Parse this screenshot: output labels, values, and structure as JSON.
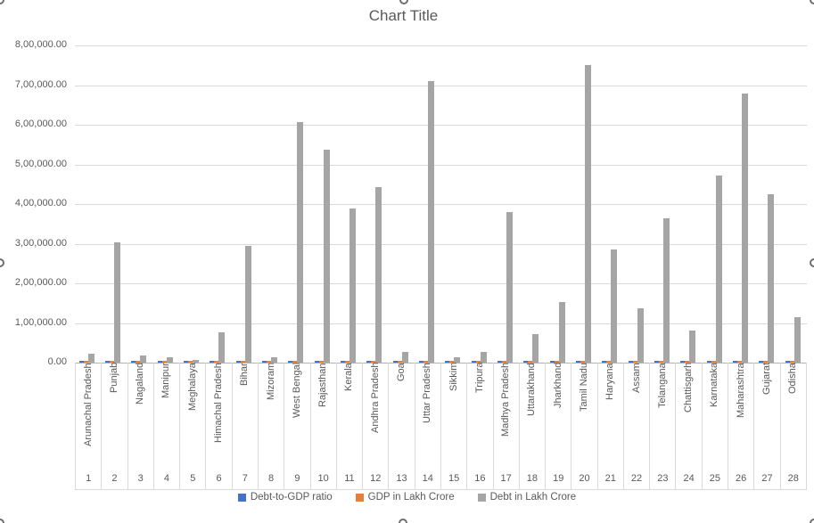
{
  "chart": {
    "background": "#FFFFFF",
    "selected": true,
    "selection_handles": [
      "top-left",
      "top-center",
      "top-right",
      "mid-left",
      "mid-right",
      "bottom-left",
      "bottom-center",
      "bottom-right"
    ]
  },
  "colors": {
    "series_blue": "#4472C4",
    "series_orange": "#ED7D31",
    "series_gray": "#A5A5A5",
    "gridline": "#D9D9D9",
    "axis_line": "#B3B3B3",
    "text": "#595959"
  },
  "chart_data": {
    "type": "bar",
    "title": "Chart Title",
    "grid": true,
    "legend_position": "bottom",
    "categories": [
      "Arunachal Pradesh",
      "Punjab",
      "Nagaland",
      "Manipur",
      "Meghalaya",
      "Himachal Pradesh",
      "Bihar",
      "Mizoram",
      "West Bengal",
      "Rajasthan",
      "Kerala",
      "Andhra Pradesh",
      "Goa",
      "Uttar Pradesh",
      "Sikkim",
      "Tripura",
      "Madhya Pradesh",
      "Uttarakhand",
      "Jharkhand",
      "Tamil Nadu",
      "Haryana",
      "Assam",
      "Telangana",
      "Chattisgarh",
      "Karnataka",
      "Maharashtra",
      "Gujarat",
      "Odisha"
    ],
    "category_numbers": [
      "1",
      "2",
      "3",
      "4",
      "5",
      "6",
      "7",
      "8",
      "9",
      "10",
      "11",
      "12",
      "13",
      "14",
      "15",
      "16",
      "17",
      "18",
      "19",
      "20",
      "21",
      "22",
      "23",
      "24",
      "25",
      "26",
      "27",
      "28"
    ],
    "series": [
      {
        "name": "Debt-to-GDP ratio",
        "color": "#4472C4",
        "values": [
          0,
          0,
          0,
          0,
          0,
          0,
          0,
          0,
          0,
          0,
          0,
          0,
          0,
          0,
          0,
          0,
          0,
          0,
          0,
          0,
          0,
          0,
          0,
          0,
          0,
          0,
          0,
          0
        ],
        "note": "values are negligible at this axis scale; bars render only as tiny slivers at the baseline"
      },
      {
        "name": "GDP in Lakh Crore",
        "color": "#ED7D31",
        "values": [
          0,
          0,
          0,
          0,
          0,
          0,
          0,
          0,
          0,
          0,
          0,
          0,
          0,
          0,
          0,
          0,
          0,
          0,
          0,
          0,
          0,
          0,
          0,
          0,
          0,
          0,
          0,
          0
        ],
        "note": "values are negligible at this axis scale; bars render only as tiny slivers at the baseline"
      },
      {
        "name": "Debt in Lakh Crore",
        "color": "#A5A5A5",
        "values": [
          22000,
          303000,
          17000,
          13000,
          7000,
          76000,
          294000,
          13000,
          607000,
          536000,
          389000,
          442000,
          26000,
          709000,
          14000,
          28000,
          379000,
          73000,
          152000,
          751000,
          285000,
          138000,
          365000,
          82000,
          473000,
          679000,
          425000,
          114000
        ]
      }
    ],
    "y_axis": {
      "min": 0,
      "max": 800000,
      "step": 100000,
      "tick_labels": [
        "8,00,000.00",
        "7,00,000.00",
        "6,00,000.00",
        "5,00,000.00",
        "4,00,000.00",
        "3,00,000.00",
        "2,00,000.00",
        "1,00,000.00",
        "0.00"
      ]
    }
  }
}
